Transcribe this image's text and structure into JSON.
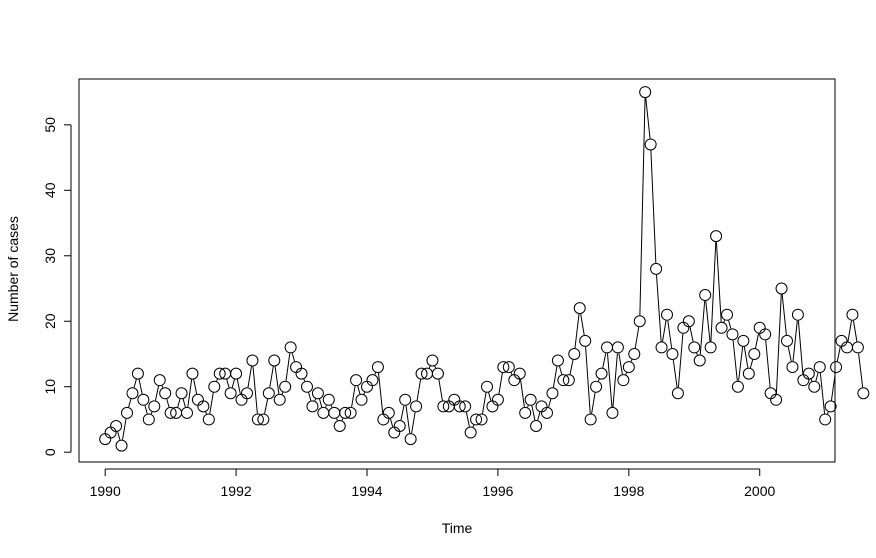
{
  "chart_data": {
    "type": "line",
    "xlabel": "Time",
    "ylabel": "Number of cases",
    "xlim": [
      1989.6,
      2001.15
    ],
    "ylim": [
      -1.5,
      57
    ],
    "x_ticks": [
      1990,
      1992,
      1994,
      1996,
      1998,
      2000
    ],
    "x_tick_labels": [
      "1990",
      "1992",
      "1994",
      "1996",
      "1998",
      "2000"
    ],
    "y_ticks": [
      0,
      10,
      20,
      30,
      40,
      50
    ],
    "y_tick_labels": [
      "0",
      "10",
      "20",
      "30",
      "40",
      "50"
    ],
    "grid": false,
    "series": [
      {
        "start": 1990,
        "frequency": 12,
        "marker": "open-circle",
        "values": [
          2,
          3,
          4,
          1,
          6,
          9,
          12,
          8,
          5,
          7,
          11,
          9,
          6,
          6,
          9,
          6,
          12,
          8,
          7,
          5,
          10,
          12,
          12,
          9,
          12,
          8,
          9,
          14,
          5,
          5,
          9,
          14,
          8,
          10,
          16,
          13,
          12,
          10,
          7,
          9,
          6,
          8,
          6,
          4,
          6,
          6,
          11,
          8,
          10,
          11,
          13,
          5,
          6,
          3,
          4,
          8,
          2,
          7,
          12,
          12,
          14,
          12,
          7,
          7,
          8,
          7,
          7,
          3,
          5,
          5,
          10,
          7,
          8,
          13,
          13,
          11,
          12,
          6,
          8,
          4,
          7,
          6,
          9,
          14,
          11,
          11,
          15,
          22,
          17,
          5,
          10,
          12,
          16,
          6,
          16,
          11,
          13,
          15,
          20,
          55,
          47,
          28,
          16,
          21,
          15,
          9,
          19,
          20,
          16,
          14,
          24,
          16,
          33,
          19,
          21,
          18,
          10,
          17,
          12,
          15,
          19,
          18,
          9,
          8,
          25,
          17,
          13,
          21,
          11,
          12,
          10,
          13,
          5,
          7,
          13,
          17,
          16,
          21,
          16,
          9
        ]
      }
    ]
  }
}
